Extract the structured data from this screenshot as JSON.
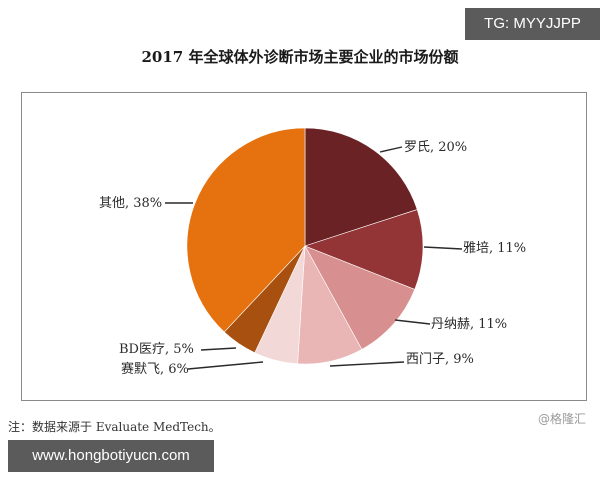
{
  "watermarks": {
    "tg": "TG: MYYJJPP",
    "url": "www.hongbotiyucn.com",
    "credit": "@格隆汇"
  },
  "note": "注：数据来源于 Evaluate MedTech。",
  "chart_data": {
    "type": "pie",
    "title": "2017 年全球体外诊断市场主要企业的市场份额",
    "start_angle": "12 o'clock, clockwise",
    "categories": [
      "罗氏",
      "雅培",
      "丹纳赫",
      "西门子",
      "赛默飞",
      "BD医疗",
      "其他"
    ],
    "values": [
      20,
      11,
      11,
      9,
      6,
      5,
      38
    ],
    "unit": "%",
    "colors": [
      "#6b2224",
      "#933537",
      "#d7908f",
      "#e9b5b5",
      "#f2d8d7",
      "#a8500f",
      "#e5720e"
    ],
    "labels": [
      "罗氏, 20%",
      "雅培, 11%",
      "丹纳赫, 11%",
      "西门子, 9%",
      "赛默飞, 6%",
      "BD医疗, 5%",
      "其他, 38%"
    ],
    "legend": "none (leader-line labels)"
  }
}
